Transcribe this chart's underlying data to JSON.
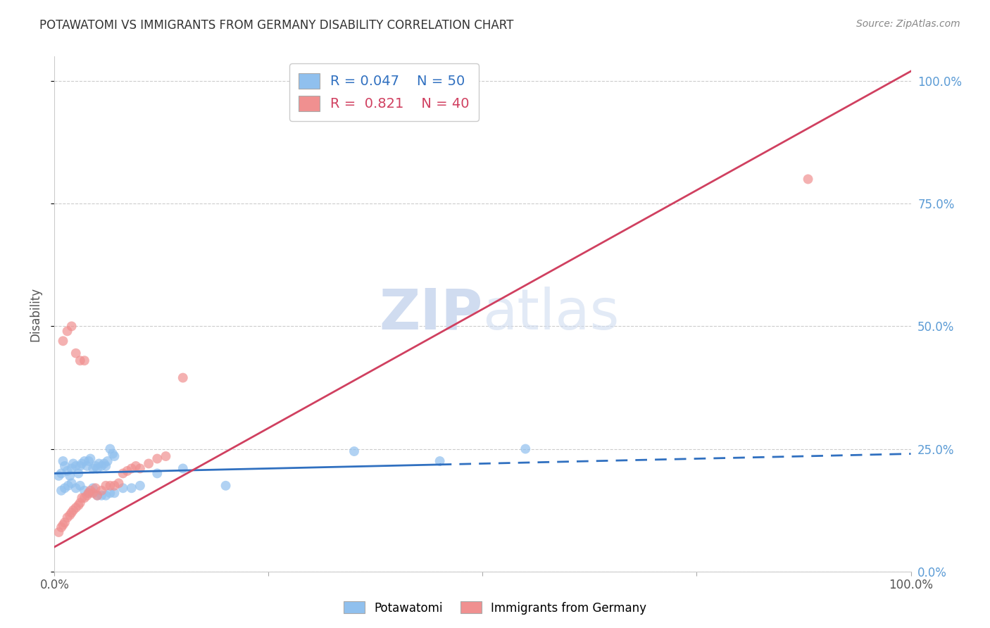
{
  "title": "POTAWATOMI VS IMMIGRANTS FROM GERMANY DISABILITY CORRELATION CHART",
  "source": "Source: ZipAtlas.com",
  "ylabel": "Disability",
  "r1": 0.047,
  "n1": 50,
  "r2": 0.821,
  "n2": 40,
  "color_blue": "#90C0EE",
  "color_pink": "#F09090",
  "line_color_blue": "#3070C0",
  "line_color_pink": "#D04060",
  "watermark_color": "#D0DCF0",
  "blue_x": [
    0.005,
    0.008,
    0.01,
    0.012,
    0.015,
    0.018,
    0.02,
    0.022,
    0.025,
    0.028,
    0.03,
    0.032,
    0.035,
    0.038,
    0.04,
    0.042,
    0.045,
    0.048,
    0.05,
    0.052,
    0.055,
    0.058,
    0.06,
    0.062,
    0.065,
    0.068,
    0.07,
    0.008,
    0.012,
    0.016,
    0.02,
    0.025,
    0.03,
    0.035,
    0.04,
    0.045,
    0.05,
    0.055,
    0.06,
    0.065,
    0.07,
    0.08,
    0.09,
    0.1,
    0.12,
    0.15,
    0.2,
    0.35,
    0.45,
    0.55
  ],
  "blue_y": [
    0.195,
    0.2,
    0.225,
    0.215,
    0.205,
    0.195,
    0.21,
    0.22,
    0.215,
    0.2,
    0.215,
    0.22,
    0.225,
    0.215,
    0.225,
    0.23,
    0.21,
    0.215,
    0.21,
    0.22,
    0.215,
    0.22,
    0.215,
    0.225,
    0.25,
    0.24,
    0.235,
    0.165,
    0.17,
    0.175,
    0.18,
    0.17,
    0.175,
    0.165,
    0.16,
    0.17,
    0.155,
    0.155,
    0.155,
    0.16,
    0.16,
    0.17,
    0.17,
    0.175,
    0.2,
    0.21,
    0.175,
    0.245,
    0.225,
    0.25
  ],
  "pink_x": [
    0.005,
    0.008,
    0.01,
    0.012,
    0.015,
    0.018,
    0.02,
    0.022,
    0.025,
    0.028,
    0.03,
    0.032,
    0.035,
    0.038,
    0.04,
    0.042,
    0.045,
    0.048,
    0.05,
    0.055,
    0.06,
    0.065,
    0.07,
    0.075,
    0.08,
    0.085,
    0.09,
    0.095,
    0.1,
    0.11,
    0.12,
    0.13,
    0.01,
    0.015,
    0.02,
    0.025,
    0.03,
    0.035,
    0.15,
    0.88
  ],
  "pink_y": [
    0.08,
    0.09,
    0.095,
    0.1,
    0.11,
    0.115,
    0.12,
    0.125,
    0.13,
    0.135,
    0.14,
    0.15,
    0.15,
    0.155,
    0.16,
    0.165,
    0.16,
    0.17,
    0.155,
    0.165,
    0.175,
    0.175,
    0.175,
    0.18,
    0.2,
    0.205,
    0.21,
    0.215,
    0.21,
    0.22,
    0.23,
    0.235,
    0.47,
    0.49,
    0.5,
    0.445,
    0.43,
    0.43,
    0.395,
    0.8
  ],
  "blue_line_start_x": 0.0,
  "blue_line_start_y": 0.2,
  "blue_line_end_x": 1.0,
  "blue_line_end_y": 0.24,
  "blue_line_solid_end": 0.45,
  "pink_line_start_x": 0.0,
  "pink_line_start_y": 0.05,
  "pink_line_end_x": 1.0,
  "pink_line_end_y": 1.02,
  "xlim": [
    0.0,
    1.0
  ],
  "ylim": [
    0.0,
    1.05
  ],
  "ytick_positions": [
    0.0,
    0.25,
    0.5,
    0.75,
    1.0
  ],
  "ytick_labels_right": [
    "0.0%",
    "25.0%",
    "50.0%",
    "75.0%",
    "100.0%"
  ],
  "xtick_positions": [
    0.0,
    0.25,
    0.5,
    0.75,
    1.0
  ],
  "legend_label1": "Potawatomi",
  "legend_label2": "Immigrants from Germany",
  "background_color": "#FFFFFF",
  "grid_color": "#CCCCCC",
  "title_color": "#333333",
  "right_ytick_color": "#5B9BD5",
  "source_color": "#888888"
}
